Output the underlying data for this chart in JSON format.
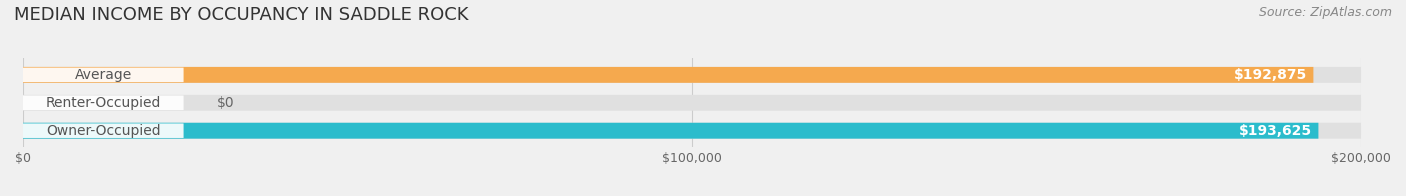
{
  "title": "MEDIAN INCOME BY OCCUPANCY IN SADDLE ROCK",
  "source": "Source: ZipAtlas.com",
  "categories": [
    "Owner-Occupied",
    "Renter-Occupied",
    "Average"
  ],
  "values": [
    193625,
    0,
    192875
  ],
  "bar_colors": [
    "#2bbccc",
    "#b8a0cc",
    "#f5a94e"
  ],
  "label_colors": [
    "#2bbccc",
    "#b8a0cc",
    "#f5a94e"
  ],
  "value_labels": [
    "$193,625",
    "$0",
    "$192,875"
  ],
  "xlim": [
    0,
    200000
  ],
  "xticks": [
    0,
    100000,
    200000
  ],
  "xtick_labels": [
    "$0",
    "$100,000",
    "$200,000"
  ],
  "background_color": "#f0f0f0",
  "bar_background_color": "#e8e8e8",
  "bar_height": 0.55,
  "title_fontsize": 13,
  "label_fontsize": 10,
  "value_fontsize": 10,
  "source_fontsize": 9
}
